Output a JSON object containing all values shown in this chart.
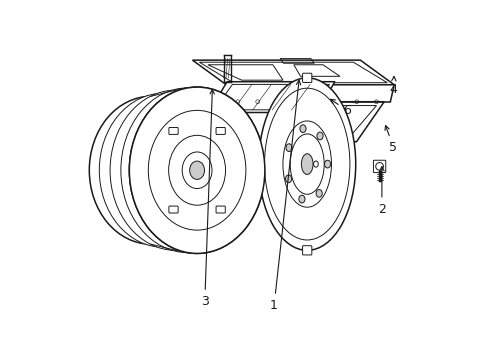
{
  "bg_color": "#ffffff",
  "line_color": "#1a1a1a",
  "line_width": 1.1,
  "thin_line": 0.7,
  "fig_width": 4.89,
  "fig_height": 3.6,
  "dpi": 100
}
